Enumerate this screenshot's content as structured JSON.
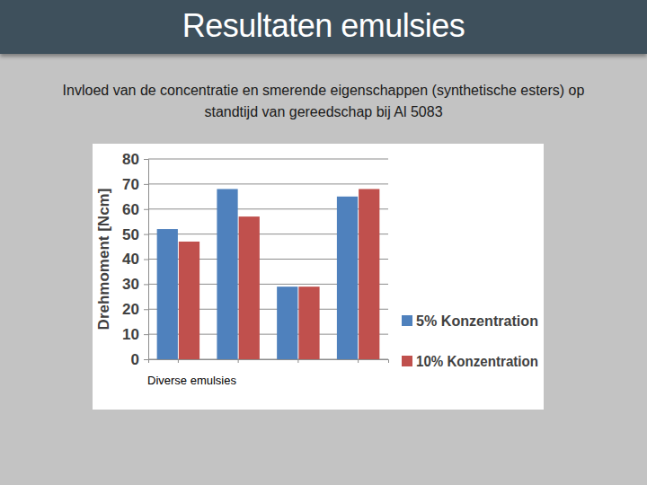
{
  "chart_data": {
    "type": "bar",
    "title": "Resultaten emulsies",
    "subtitle": "Invloed van de concentratie en smerende eigenschappen (synthetische esters) op standtijd van gereedschap bij Al 5083",
    "x_label": "Diverse emulsies",
    "y_label": "Drehmoment [Ncm]",
    "categories": [
      null,
      null,
      null,
      null
    ],
    "series": [
      {
        "name": "5% Konzentration",
        "color": "#4f81bd",
        "values": [
          52,
          68,
          29,
          65
        ]
      },
      {
        "name": "10% Konzentration",
        "color": "#c0504d",
        "values": [
          47,
          57,
          29,
          68
        ]
      }
    ],
    "ylim": [
      0,
      80
    ],
    "yticks": [
      0,
      10,
      20,
      30,
      40,
      50,
      60,
      70,
      80
    ],
    "grid": true,
    "legend": "right"
  }
}
